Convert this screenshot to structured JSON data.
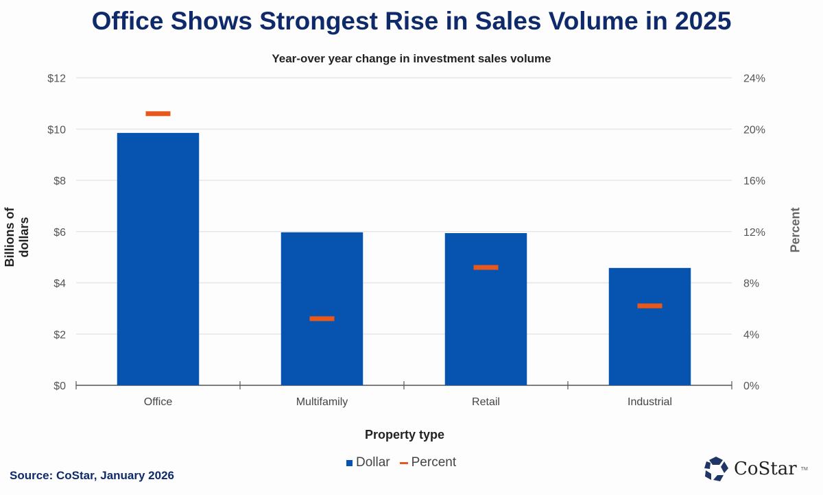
{
  "chart_data": {
    "type": "bar",
    "title": "Office Shows Strongest Rise in Sales Volume in 2025",
    "subtitle": "Year-over year change in investment sales volume",
    "xlabel": "Property type",
    "ylabel": "Billions of dollars",
    "y2label": "Percent",
    "categories": [
      "Office",
      "Multifamily",
      "Retail",
      "Industrial"
    ],
    "series": [
      {
        "name": "Dollar",
        "type": "bar",
        "axis": "left",
        "color": "#0654b0",
        "values": [
          9.85,
          5.97,
          5.94,
          4.58
        ]
      },
      {
        "name": "Percent",
        "type": "marker",
        "axis": "right",
        "color": "#e8571b",
        "values": [
          21.2,
          5.2,
          9.2,
          6.2
        ]
      }
    ],
    "ylim": [
      0,
      12
    ],
    "y2lim": [
      0,
      24
    ],
    "yticks": [
      "$0",
      "$2",
      "$4",
      "$6",
      "$8",
      "$10",
      "$12"
    ],
    "y2ticks": [
      "0%",
      "4%",
      "8%",
      "12%",
      "16%",
      "20%",
      "24%"
    ],
    "grid": true,
    "legend": "bottom"
  },
  "source": "Source: CoStar, January 2026",
  "logo": {
    "text": "CoStar",
    "tm": "TM",
    "color": "#1f3566"
  }
}
